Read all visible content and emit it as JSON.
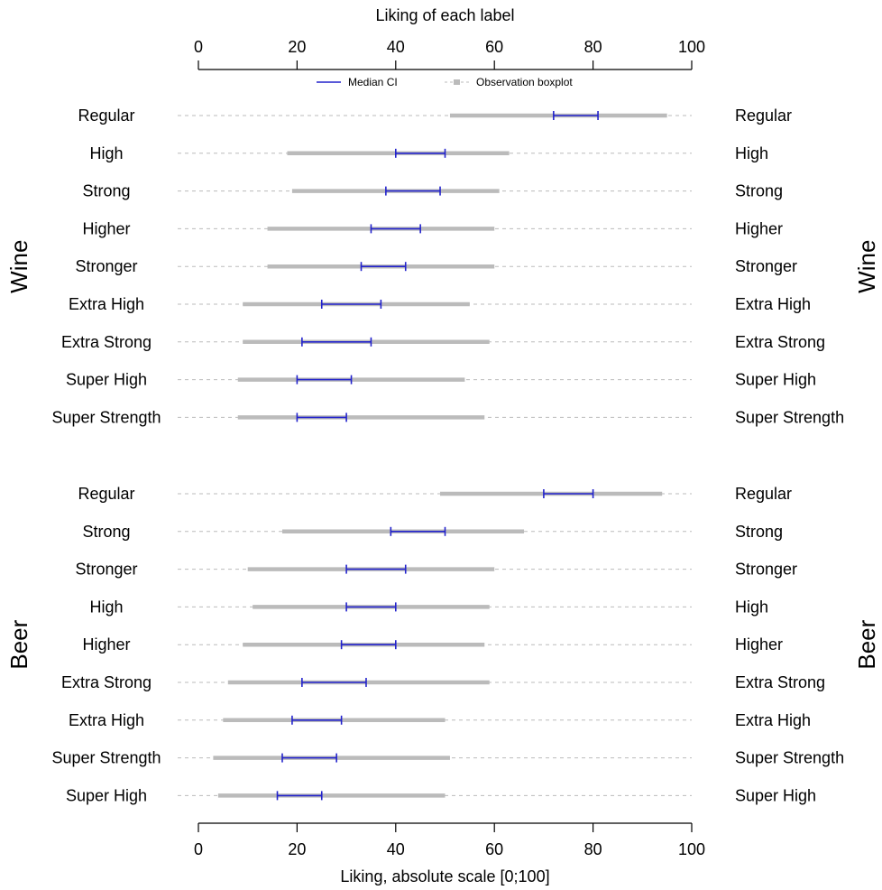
{
  "chart_data": {
    "type": "boxplot-ci",
    "top_axis_title": "Liking of each label",
    "bottom_axis_title": "Liking, absolute scale [0;100]",
    "xlim": [
      0,
      100
    ],
    "ticks": [
      "0",
      "20",
      "40",
      "60",
      "80",
      "100"
    ],
    "legend": {
      "ci_label": "Median CI",
      "box_label": "Observation boxplot"
    },
    "colors": {
      "ci": "#2222cc",
      "box": "#bbbbbb",
      "dashed": "#bbbbbb"
    },
    "groups": [
      {
        "name": "Wine",
        "rows": [
          {
            "label": "Regular",
            "box": [
              51,
              95
            ],
            "ci": [
              72,
              81
            ]
          },
          {
            "label": "High",
            "box": [
              18,
              63
            ],
            "ci": [
              40,
              50
            ]
          },
          {
            "label": "Strong",
            "box": [
              19,
              61
            ],
            "ci": [
              38,
              49
            ]
          },
          {
            "label": "Higher",
            "box": [
              14,
              60
            ],
            "ci": [
              35,
              45
            ]
          },
          {
            "label": "Stronger",
            "box": [
              14,
              60
            ],
            "ci": [
              33,
              42
            ]
          },
          {
            "label": "Extra High",
            "box": [
              9,
              55
            ],
            "ci": [
              25,
              37
            ]
          },
          {
            "label": "Extra Strong",
            "box": [
              9,
              59
            ],
            "ci": [
              21,
              35
            ]
          },
          {
            "label": "Super High",
            "box": [
              8,
              54
            ],
            "ci": [
              20,
              31
            ]
          },
          {
            "label": "Super Strength",
            "box": [
              8,
              58
            ],
            "ci": [
              20,
              30
            ]
          }
        ]
      },
      {
        "name": "Beer",
        "rows": [
          {
            "label": "Regular",
            "box": [
              49,
              94
            ],
            "ci": [
              70,
              80
            ]
          },
          {
            "label": "Strong",
            "box": [
              17,
              66
            ],
            "ci": [
              39,
              50
            ]
          },
          {
            "label": "Stronger",
            "box": [
              10,
              60
            ],
            "ci": [
              30,
              42
            ]
          },
          {
            "label": "High",
            "box": [
              11,
              59
            ],
            "ci": [
              30,
              40
            ]
          },
          {
            "label": "Higher",
            "box": [
              9,
              58
            ],
            "ci": [
              29,
              40
            ]
          },
          {
            "label": "Extra Strong",
            "box": [
              6,
              59
            ],
            "ci": [
              21,
              34
            ]
          },
          {
            "label": "Extra High",
            "box": [
              5,
              50
            ],
            "ci": [
              19,
              29
            ]
          },
          {
            "label": "Super Strength",
            "box": [
              3,
              51
            ],
            "ci": [
              17,
              28
            ]
          },
          {
            "label": "Super High",
            "box": [
              4,
              50
            ],
            "ci": [
              16,
              25
            ]
          }
        ]
      }
    ]
  }
}
